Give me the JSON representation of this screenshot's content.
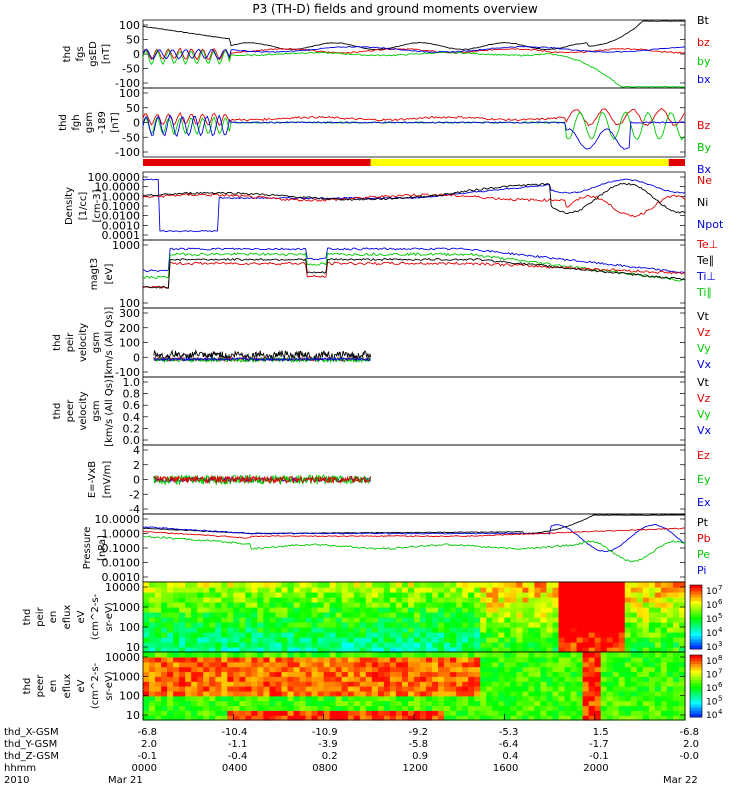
{
  "title": "P3 (TH-D) fields and ground moments overview",
  "colors": {
    "black": "#000000",
    "red": "#e00000",
    "green": "#00c800",
    "blue": "#0000e0",
    "yellow": "#ffff00"
  },
  "chart_data": [
    {
      "id": "fgs",
      "type": "line",
      "ylabel": [
        "thd",
        "fgs",
        "gsED",
        "[nT]"
      ],
      "ylim": [
        -100,
        100
      ],
      "yticks": [
        "100",
        "50",
        "0",
        "-50",
        "-100"
      ],
      "legend": [
        {
          "name": "Bt",
          "color": "black"
        },
        {
          "name": "bz",
          "color": "red"
        },
        {
          "name": "by",
          "color": "green"
        },
        {
          "name": "bx",
          "color": "blue"
        }
      ]
    },
    {
      "id": "fgh",
      "type": "line",
      "ylabel": [
        "thd",
        "fgh",
        "gsm",
        "-189",
        "[nT]"
      ],
      "ylim": [
        -125,
        125
      ],
      "yticks": [
        "100",
        "50",
        "0",
        "-50",
        "-100"
      ],
      "legend": [
        {
          "name": "Bz",
          "color": "red"
        },
        {
          "name": "By",
          "color": "green"
        },
        {
          "name": "Bx",
          "color": "blue"
        }
      ]
    },
    {
      "id": "density",
      "type": "line",
      "ylabel": [
        "Density",
        "[1/cc]",
        "[cm-3]"
      ],
      "log": true,
      "yticks": [
        "100.0000",
        "10.0000",
        "1.0000",
        "0.1000",
        "0.0100",
        "0.0010",
        "0.0001"
      ],
      "legend": [
        {
          "name": "Ne",
          "color": "red"
        },
        {
          "name": "Ni",
          "color": "black"
        },
        {
          "name": "Npot",
          "color": "blue"
        }
      ]
    },
    {
      "id": "temp",
      "type": "line",
      "ylabel": [
        "magt3",
        "[eV]"
      ],
      "log": true,
      "yticks": [
        "1000",
        "100"
      ],
      "legend": [
        {
          "name": "Te⊥",
          "color": "red"
        },
        {
          "name": "Te∥",
          "color": "black"
        },
        {
          "name": "Ti⊥",
          "color": "blue"
        },
        {
          "name": "Ti∥",
          "color": "green"
        }
      ]
    },
    {
      "id": "peirv",
      "type": "line",
      "ylabel": [
        "thd",
        "peir",
        "velocity",
        "gsm",
        "[km/s (All Qs)]"
      ],
      "ylim": [
        -100,
        300
      ],
      "yticks": [
        "300",
        "200",
        "100",
        "0",
        "-100"
      ],
      "legend": [
        {
          "name": "Vt",
          "color": "black"
        },
        {
          "name": "Vz",
          "color": "red"
        },
        {
          "name": "Vy",
          "color": "green"
        },
        {
          "name": "Vx",
          "color": "blue"
        }
      ]
    },
    {
      "id": "peerv",
      "type": "line",
      "ylabel": [
        "thd",
        "peer",
        "velocity",
        "gsm",
        "[km/s (All Qs)]"
      ],
      "ylim": [
        0,
        1
      ],
      "yticks": [
        "1.0",
        "0.8",
        "0.6",
        "0.4",
        "0.2",
        "0.0"
      ],
      "legend": [
        {
          "name": "Vt",
          "color": "black"
        },
        {
          "name": "Vz",
          "color": "red"
        },
        {
          "name": "Vy",
          "color": "green"
        },
        {
          "name": "Vx",
          "color": "blue"
        }
      ]
    },
    {
      "id": "efield",
      "type": "line",
      "ylabel": [
        "E=-VxB",
        "[mV/m]"
      ],
      "ylim": [
        -4,
        4
      ],
      "yticks": [
        "4",
        "2",
        "0",
        "-2",
        "-4"
      ],
      "legend": [
        {
          "name": "Ez",
          "color": "red"
        },
        {
          "name": "Ey",
          "color": "green"
        },
        {
          "name": "Ex",
          "color": "blue"
        }
      ]
    },
    {
      "id": "pressure",
      "type": "line",
      "ylabel": [
        "Pressure",
        "[nPa]"
      ],
      "log": true,
      "yticks": [
        "10.0000",
        "1.0000",
        "0.1000",
        "0.0100",
        "0.0010"
      ],
      "legend": [
        {
          "name": "Pt",
          "color": "black"
        },
        {
          "name": "Pb",
          "color": "red"
        },
        {
          "name": "Pe",
          "color": "green"
        },
        {
          "name": "Pi",
          "color": "blue"
        }
      ]
    },
    {
      "id": "peir_spec",
      "type": "heatmap",
      "ylabel": [
        "thd",
        "peir",
        "en",
        "eflux",
        "eV",
        "(cm^2-s-",
        "sr-eV)"
      ],
      "log": true,
      "yticks": [
        "10000",
        "1000",
        "100",
        "10"
      ],
      "colorbar": [
        "7",
        "6",
        "5",
        "4",
        "3"
      ]
    },
    {
      "id": "peer_spec",
      "type": "heatmap",
      "ylabel": [
        "thd",
        "peer",
        "en",
        "eflux",
        "eV",
        "(cm^2-s-",
        "sr-eV)"
      ],
      "log": true,
      "yticks": [
        "10000",
        "1000",
        "100",
        "10"
      ],
      "colorbar": [
        "8",
        "7",
        "6",
        "5",
        "4"
      ]
    }
  ],
  "axis_table": {
    "row_labels": [
      "thd_X-GSM",
      "thd_Y-GSM",
      "thd_Z-GSM",
      "hhmm",
      "2010"
    ],
    "columns": [
      {
        "values": [
          "-6.8",
          "2.0",
          "-0.1",
          "0000",
          "Mar 21"
        ]
      },
      {
        "values": [
          "-10.4",
          "-1.1",
          "-0.4",
          "0400",
          ""
        ]
      },
      {
        "values": [
          "-10.9",
          "-3.9",
          "0.2",
          "0800",
          ""
        ]
      },
      {
        "values": [
          "-9.2",
          "-5.8",
          "0.9",
          "1200",
          ""
        ]
      },
      {
        "values": [
          "-5.3",
          "-6.4",
          "0.4",
          "1600",
          ""
        ]
      },
      {
        "values": [
          "1.5",
          "-1.7",
          "-0.1",
          "2000",
          ""
        ]
      },
      {
        "values": [
          "-6.8",
          "2.0",
          "-0.0",
          "",
          "Mar 22"
        ]
      }
    ]
  }
}
